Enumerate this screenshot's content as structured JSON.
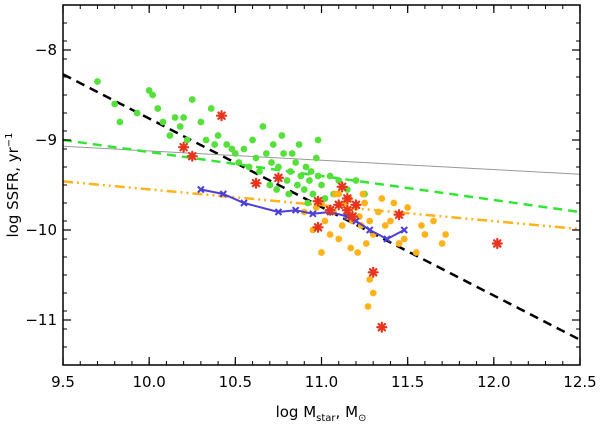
{
  "chart_data": {
    "type": "scatter",
    "title": "",
    "xlabel": {
      "main": "log M",
      "sub": "star",
      "unit_prefix": ", M",
      "unit_sub": "⊙"
    },
    "ylabel": {
      "main": "log SSFR, yr",
      "sup": "−1"
    },
    "xlim": [
      9.5,
      12.5
    ],
    "ylim": [
      -11.5,
      -7.5
    ],
    "xticks": [
      9.5,
      10.0,
      10.5,
      11.0,
      11.5,
      12.0,
      12.5
    ],
    "xtick_labels": [
      "9.5",
      "10.0",
      "10.5",
      "11.0",
      "11.5",
      "12.0",
      "12.5"
    ],
    "yticks": [
      -8,
      -9,
      -10,
      -11
    ],
    "ytick_labels": [
      "−8",
      "−9",
      "−10",
      "−11"
    ],
    "colors": {
      "green": "#55e03a",
      "orange": "#ffb31a",
      "red": "#e8341c",
      "blue": "#4b3fd6",
      "black": "#000000",
      "gray": "#999999",
      "green_line": "#33e633",
      "orange_line": "#ffb31a"
    },
    "lines": [
      {
        "name": "black-dashed",
        "x": [
          9.5,
          12.5
        ],
        "y": [
          -8.27,
          -11.22
        ],
        "color": "#000000",
        "style": "dashed",
        "width": 2.5
      },
      {
        "name": "gray-solid",
        "x": [
          9.5,
          12.5
        ],
        "y": [
          -9.07,
          -9.38
        ],
        "color": "#999999",
        "style": "solid",
        "width": 1
      },
      {
        "name": "green-dashed",
        "x": [
          9.5,
          12.5
        ],
        "y": [
          -9.0,
          -9.8
        ],
        "color": "#33e633",
        "style": "dashed",
        "width": 2.5
      },
      {
        "name": "orange-dashdotdot",
        "x": [
          9.5,
          12.5
        ],
        "y": [
          -9.46,
          -9.99
        ],
        "color": "#ffb31a",
        "style": "dashdotdot",
        "width": 2.5
      }
    ],
    "series": [
      {
        "name": "green-points",
        "marker": "circle",
        "color": "#55e03a",
        "points": [
          [
            9.7,
            -8.35
          ],
          [
            9.8,
            -8.6
          ],
          [
            9.83,
            -8.8
          ],
          [
            9.93,
            -8.7
          ],
          [
            10.0,
            -8.45
          ],
          [
            10.02,
            -8.5
          ],
          [
            10.05,
            -8.65
          ],
          [
            10.08,
            -8.8
          ],
          [
            10.12,
            -8.95
          ],
          [
            10.15,
            -8.75
          ],
          [
            10.18,
            -8.85
          ],
          [
            10.2,
            -8.75
          ],
          [
            10.22,
            -9.0
          ],
          [
            10.25,
            -8.55
          ],
          [
            10.3,
            -8.8
          ],
          [
            10.33,
            -9.0
          ],
          [
            10.36,
            -8.65
          ],
          [
            10.38,
            -9.05
          ],
          [
            10.4,
            -8.95
          ],
          [
            10.45,
            -9.05
          ],
          [
            10.48,
            -9.1
          ],
          [
            10.5,
            -9.15
          ],
          [
            10.52,
            -9.25
          ],
          [
            10.55,
            -9.1
          ],
          [
            10.58,
            -9.3
          ],
          [
            10.6,
            -9.0
          ],
          [
            10.62,
            -9.2
          ],
          [
            10.64,
            -9.35
          ],
          [
            10.66,
            -8.85
          ],
          [
            10.68,
            -9.15
          ],
          [
            10.7,
            -9.5
          ],
          [
            10.71,
            -9.25
          ],
          [
            10.72,
            -9.05
          ],
          [
            10.74,
            -9.55
          ],
          [
            10.75,
            -9.3
          ],
          [
            10.77,
            -8.95
          ],
          [
            10.78,
            -9.15
          ],
          [
            10.8,
            -9.45
          ],
          [
            10.81,
            -9.6
          ],
          [
            10.82,
            -9.35
          ],
          [
            10.83,
            -9.15
          ],
          [
            10.85,
            -9.25
          ],
          [
            10.86,
            -9.5
          ],
          [
            10.87,
            -9.05
          ],
          [
            10.88,
            -9.4
          ],
          [
            10.9,
            -9.55
          ],
          [
            10.91,
            -9.3
          ],
          [
            10.92,
            -9.7
          ],
          [
            10.93,
            -9.45
          ],
          [
            10.95,
            -9.6
          ],
          [
            10.97,
            -9.2
          ],
          [
            10.98,
            -9.4
          ],
          [
            11.0,
            -9.5
          ],
          [
            11.02,
            -9.65
          ],
          [
            11.05,
            -9.4
          ],
          [
            11.07,
            -9.6
          ],
          [
            11.1,
            -9.45
          ],
          [
            11.15,
            -9.55
          ],
          [
            11.2,
            -9.45
          ],
          [
            11.25,
            -9.6
          ],
          [
            10.98,
            -9.0
          ],
          [
            10.94,
            -9.35
          ]
        ]
      },
      {
        "name": "orange-points",
        "marker": "circle",
        "color": "#ffb31a",
        "points": [
          [
            10.9,
            -9.8
          ],
          [
            10.95,
            -10.0
          ],
          [
            10.97,
            -9.75
          ],
          [
            11.0,
            -9.7
          ],
          [
            11.02,
            -9.9
          ],
          [
            11.05,
            -10.05
          ],
          [
            11.07,
            -9.8
          ],
          [
            11.08,
            -9.6
          ],
          [
            11.1,
            -10.1
          ],
          [
            11.12,
            -9.95
          ],
          [
            11.14,
            -9.7
          ],
          [
            11.15,
            -9.85
          ],
          [
            11.17,
            -10.2
          ],
          [
            11.18,
            -9.9
          ],
          [
            11.2,
            -9.75
          ],
          [
            11.21,
            -10.25
          ],
          [
            11.22,
            -9.85
          ],
          [
            11.23,
            -9.95
          ],
          [
            11.25,
            -9.7
          ],
          [
            11.26,
            -10.15
          ],
          [
            11.28,
            -9.9
          ],
          [
            11.3,
            -10.05
          ],
          [
            11.33,
            -9.8
          ],
          [
            11.35,
            -9.65
          ],
          [
            11.37,
            -9.95
          ],
          [
            11.4,
            -9.9
          ],
          [
            11.42,
            -9.7
          ],
          [
            11.45,
            -10.15
          ],
          [
            11.48,
            -10.1
          ],
          [
            11.5,
            -9.75
          ],
          [
            11.55,
            -10.25
          ],
          [
            11.58,
            -9.95
          ],
          [
            11.6,
            -10.05
          ],
          [
            11.65,
            -9.9
          ],
          [
            11.7,
            -10.15
          ],
          [
            11.72,
            -10.05
          ],
          [
            11.3,
            -10.7
          ],
          [
            11.28,
            -10.55
          ],
          [
            11.27,
            -10.85
          ],
          [
            11.0,
            -10.25
          ],
          [
            11.1,
            -9.6
          ],
          [
            11.16,
            -9.65
          ],
          [
            11.24,
            -9.6
          ]
        ]
      },
      {
        "name": "red-stars",
        "marker": "star",
        "color": "#e8341c",
        "points": [
          [
            10.42,
            -8.73
          ],
          [
            10.2,
            -9.08
          ],
          [
            10.25,
            -9.18
          ],
          [
            10.62,
            -9.48
          ],
          [
            10.75,
            -9.42
          ],
          [
            11.12,
            -9.52
          ],
          [
            11.15,
            -9.65
          ],
          [
            10.98,
            -9.68
          ],
          [
            11.05,
            -9.78
          ],
          [
            11.18,
            -9.85
          ],
          [
            11.2,
            -9.72
          ],
          [
            11.1,
            -9.72
          ],
          [
            11.15,
            -9.78
          ],
          [
            11.45,
            -9.83
          ],
          [
            10.98,
            -9.97
          ],
          [
            11.3,
            -10.47
          ],
          [
            11.35,
            -11.08
          ],
          [
            12.02,
            -10.15
          ]
        ]
      },
      {
        "name": "blue-line",
        "marker": "x",
        "color": "#4b3fd6",
        "line": true,
        "points": [
          [
            10.3,
            -9.55
          ],
          [
            10.43,
            -9.6
          ],
          [
            10.55,
            -9.7
          ],
          [
            10.75,
            -9.8
          ],
          [
            10.85,
            -9.78
          ],
          [
            10.95,
            -9.82
          ],
          [
            11.05,
            -9.8
          ],
          [
            11.15,
            -9.85
          ],
          [
            11.2,
            -9.9
          ],
          [
            11.28,
            -10.0
          ],
          [
            11.38,
            -10.1
          ],
          [
            11.48,
            -10.0
          ]
        ]
      }
    ]
  }
}
